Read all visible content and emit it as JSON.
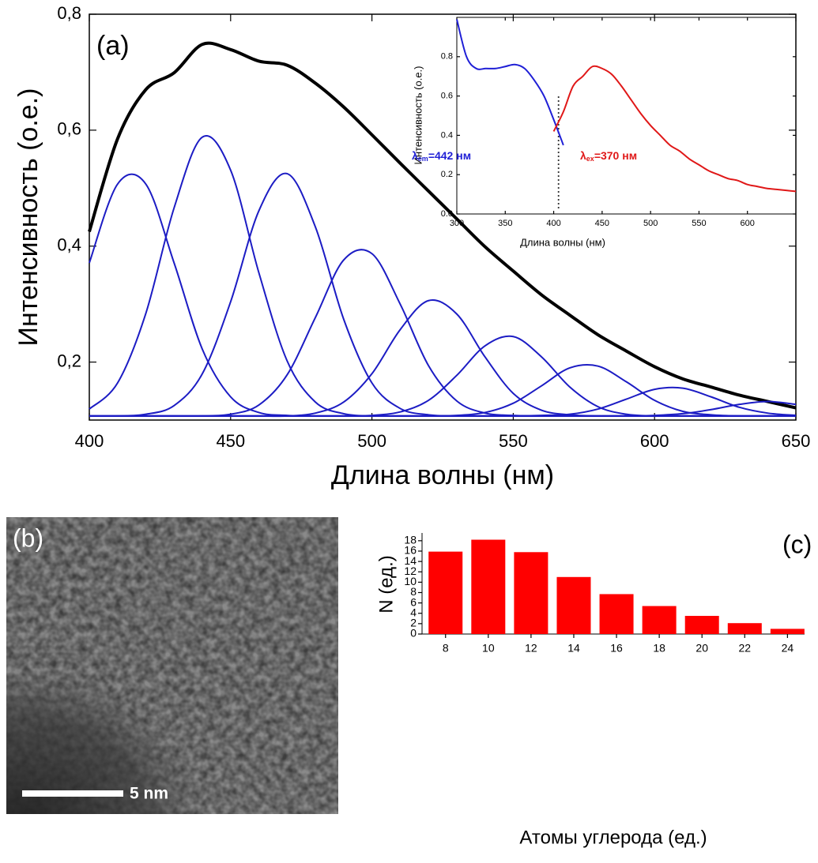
{
  "chart_data": [
    {
      "type": "line",
      "label": "(a)",
      "x_label": "Длина волны (нм)",
      "y_label": "Интенсивность (о.е.)",
      "x": [
        400,
        410,
        420,
        430,
        440,
        450,
        460,
        470,
        480,
        490,
        500,
        510,
        520,
        530,
        540,
        550,
        560,
        570,
        580,
        590,
        600,
        610,
        620,
        630,
        640,
        650
      ],
      "xlim": [
        400,
        650
      ],
      "ylim": [
        0.1,
        0.8
      ],
      "xticks": [
        400,
        450,
        500,
        550,
        600,
        650
      ],
      "yticks": [
        {
          "value": 0.2,
          "label": "0,2"
        },
        {
          "value": 0.4,
          "label": "0,4"
        },
        {
          "value": 0.6,
          "label": "0,6"
        },
        {
          "value": 0.8,
          "label": "0,8"
        }
      ],
      "series": [
        {
          "color": "#000000",
          "values": [
            0.425,
            0.585,
            0.67,
            0.699,
            0.748,
            0.739,
            0.719,
            0.712,
            0.681,
            0.64,
            0.592,
            0.543,
            0.495,
            0.447,
            0.399,
            0.357,
            0.316,
            0.281,
            0.247,
            0.219,
            0.192,
            0.171,
            0.157,
            0.143,
            0.132,
            0.121
          ]
        },
        {
          "color": "#1c1cc4",
          "values": [
            0.371,
            0.507,
            0.507,
            0.371,
            0.222,
            0.14,
            0.113,
            0.108,
            0.107,
            0.107,
            0.107,
            0.107,
            0.107,
            0.107,
            0.107,
            0.107,
            0.107,
            0.107,
            0.107,
            0.107,
            0.107,
            0.107,
            0.107,
            0.107,
            0.107,
            0.107
          ]
        },
        {
          "color": "#1c1cc4",
          "values": [
            0.119,
            0.164,
            0.284,
            0.466,
            0.588,
            0.531,
            0.354,
            0.202,
            0.131,
            0.111,
            0.107,
            0.107,
            0.107,
            0.107,
            0.107,
            0.107,
            0.107,
            0.107,
            0.107,
            0.107,
            0.107,
            0.107,
            0.107,
            0.107,
            0.107,
            0.107
          ]
        },
        {
          "color": "#1c1cc4",
          "values": [
            0.107,
            0.107,
            0.11,
            0.125,
            0.18,
            0.304,
            0.461,
            0.525,
            0.433,
            0.274,
            0.164,
            0.12,
            0.109,
            0.107,
            0.107,
            0.107,
            0.107,
            0.107,
            0.107,
            0.107,
            0.107,
            0.107,
            0.107,
            0.107,
            0.107,
            0.107
          ]
        },
        {
          "color": "#1c1cc4",
          "values": [
            0.107,
            0.107,
            0.107,
            0.107,
            0.107,
            0.11,
            0.126,
            0.178,
            0.277,
            0.376,
            0.387,
            0.3,
            0.194,
            0.133,
            0.112,
            0.108,
            0.107,
            0.107,
            0.107,
            0.107,
            0.107,
            0.107,
            0.107,
            0.107,
            0.107,
            0.107
          ]
        },
        {
          "color": "#1c1cc4",
          "values": [
            0.107,
            0.107,
            0.107,
            0.107,
            0.107,
            0.107,
            0.107,
            0.107,
            0.112,
            0.131,
            0.18,
            0.256,
            0.306,
            0.283,
            0.209,
            0.146,
            0.117,
            0.109,
            0.107,
            0.107,
            0.107,
            0.107,
            0.107,
            0.107,
            0.107,
            0.107
          ]
        },
        {
          "color": "#1c1cc4",
          "values": [
            0.107,
            0.107,
            0.107,
            0.107,
            0.107,
            0.107,
            0.107,
            0.107,
            0.107,
            0.107,
            0.108,
            0.114,
            0.134,
            0.177,
            0.228,
            0.244,
            0.209,
            0.157,
            0.123,
            0.11,
            0.107,
            0.107,
            0.107,
            0.107,
            0.107,
            0.107
          ]
        },
        {
          "color": "#1c1cc4",
          "values": [
            0.107,
            0.107,
            0.107,
            0.107,
            0.107,
            0.107,
            0.107,
            0.107,
            0.107,
            0.107,
            0.107,
            0.107,
            0.107,
            0.108,
            0.113,
            0.129,
            0.159,
            0.19,
            0.193,
            0.166,
            0.134,
            0.115,
            0.109,
            0.107,
            0.107,
            0.107
          ]
        },
        {
          "color": "#1c1cc4",
          "values": [
            0.107,
            0.107,
            0.107,
            0.107,
            0.107,
            0.107,
            0.107,
            0.107,
            0.107,
            0.107,
            0.107,
            0.107,
            0.107,
            0.107,
            0.107,
            0.107,
            0.108,
            0.11,
            0.119,
            0.136,
            0.153,
            0.155,
            0.14,
            0.122,
            0.112,
            0.108
          ]
        },
        {
          "color": "#1c1cc4",
          "values": [
            0.107,
            0.107,
            0.107,
            0.107,
            0.107,
            0.107,
            0.107,
            0.107,
            0.107,
            0.107,
            0.107,
            0.107,
            0.107,
            0.107,
            0.107,
            0.107,
            0.107,
            0.107,
            0.107,
            0.107,
            0.108,
            0.111,
            0.118,
            0.127,
            0.132,
            0.127
          ]
        }
      ]
    },
    {
      "type": "line",
      "x_label": "Длина волны (нм)",
      "y_label": "Интенсивность (о.е.)",
      "xlim": [
        300,
        650
      ],
      "ylim": [
        0,
        1.0
      ],
      "xticks": [
        300,
        350,
        400,
        450,
        500,
        550,
        600
      ],
      "yticks": [
        {
          "value": 0,
          "label": "0.0"
        },
        0.2,
        0.4,
        0.6,
        0.8
      ],
      "vline": 405,
      "series": [
        {
          "color": "#1f1fd6",
          "x": [
            300,
            310,
            320,
            330,
            340,
            350,
            360,
            370,
            380,
            390,
            400,
            410
          ],
          "values": [
            0.99,
            0.8,
            0.74,
            0.74,
            0.74,
            0.75,
            0.76,
            0.74,
            0.68,
            0.6,
            0.48,
            0.35
          ]
        },
        {
          "color": "#e01818",
          "x": [
            400,
            410,
            420,
            430,
            440,
            450,
            460,
            470,
            480,
            490,
            500,
            510,
            520,
            530,
            540,
            550,
            560,
            570,
            580,
            590,
            600,
            610,
            620,
            630,
            640,
            650
          ],
          "values": [
            0.42,
            0.52,
            0.65,
            0.7,
            0.75,
            0.74,
            0.71,
            0.65,
            0.58,
            0.51,
            0.45,
            0.4,
            0.35,
            0.32,
            0.28,
            0.25,
            0.22,
            0.2,
            0.18,
            0.17,
            0.15,
            0.14,
            0.13,
            0.125,
            0.12,
            0.115
          ]
        }
      ],
      "annotations": [
        {
          "symbol": "λ",
          "sub": "em",
          "text": "=442 нм",
          "color": "#1f1fd6"
        },
        {
          "symbol": "λ",
          "sub": "ex",
          "text": "=370 нм",
          "color": "#e01818"
        }
      ]
    },
    {
      "type": "bar",
      "label": "(c)",
      "x_label": "Атомы углерода (ед.)",
      "y_label": "N (ед.)",
      "color": "#ff0000",
      "x": [
        8,
        10,
        12,
        14,
        16,
        18,
        20,
        22,
        24
      ],
      "values": [
        15.9,
        18.2,
        15.8,
        11.0,
        7.7,
        5.4,
        3.5,
        2.1,
        1.0
      ],
      "xlim": [
        6.9,
        24.8
      ],
      "ylim": [
        0,
        19.5
      ],
      "xticks": [
        8,
        10,
        12,
        14,
        16,
        18,
        20,
        22,
        24
      ],
      "yticks": [
        0,
        2,
        4,
        6,
        8,
        10,
        12,
        14,
        16,
        18
      ]
    }
  ],
  "image": {
    "label": "(b)",
    "scale_bar": "5 nm"
  }
}
